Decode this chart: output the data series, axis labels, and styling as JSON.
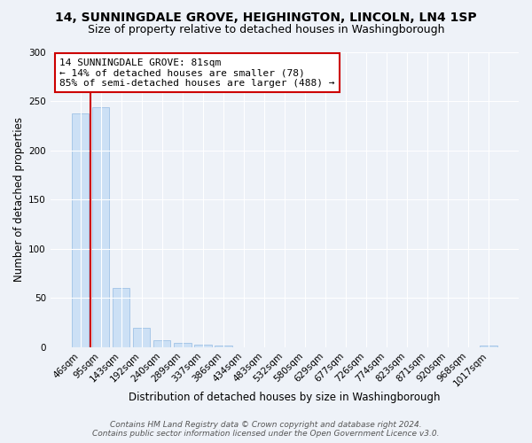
{
  "title": "14, SUNNINGDALE GROVE, HEIGHINGTON, LINCOLN, LN4 1SP",
  "subtitle": "Size of property relative to detached houses in Washingborough",
  "xlabel": "Distribution of detached houses by size in Washingborough",
  "ylabel": "Number of detached properties",
  "bar_labels": [
    "46sqm",
    "95sqm",
    "143sqm",
    "192sqm",
    "240sqm",
    "289sqm",
    "337sqm",
    "386sqm",
    "434sqm",
    "483sqm",
    "532sqm",
    "580sqm",
    "629sqm",
    "677sqm",
    "726sqm",
    "774sqm",
    "823sqm",
    "871sqm",
    "920sqm",
    "968sqm",
    "1017sqm"
  ],
  "bar_values": [
    238,
    244,
    60,
    19,
    7,
    4,
    2,
    1,
    0,
    0,
    0,
    0,
    0,
    0,
    0,
    0,
    0,
    0,
    0,
    0,
    1
  ],
  "bar_color": "#cce0f5",
  "bar_edge_color": "#a8c8e8",
  "property_line_x": 0.5,
  "property_line_color": "#cc0000",
  "ylim": [
    0,
    300
  ],
  "yticks": [
    0,
    50,
    100,
    150,
    200,
    250,
    300
  ],
  "annotation_title": "14 SUNNINGDALE GROVE: 81sqm",
  "annotation_line1": "← 14% of detached houses are smaller (78)",
  "annotation_line2": "85% of semi-detached houses are larger (488) →",
  "annotation_box_color": "#ffffff",
  "annotation_box_edge": "#cc0000",
  "footer_line1": "Contains HM Land Registry data © Crown copyright and database right 2024.",
  "footer_line2": "Contains public sector information licensed under the Open Government Licence v3.0.",
  "background_color": "#eef2f8",
  "grid_color": "#ffffff",
  "title_fontsize": 10,
  "subtitle_fontsize": 9,
  "axis_label_fontsize": 8.5,
  "tick_fontsize": 7.5,
  "annotation_fontsize": 8,
  "footer_fontsize": 6.5
}
